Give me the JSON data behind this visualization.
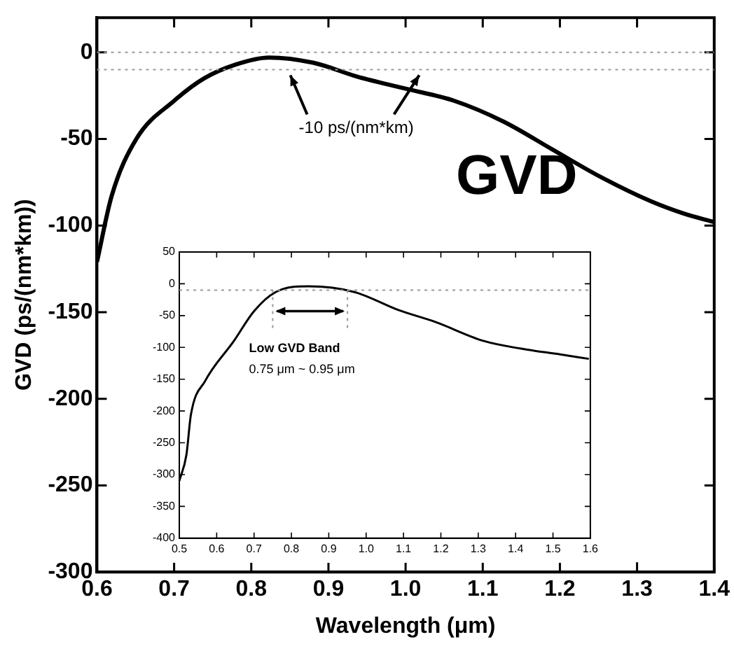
{
  "chart_data": [
    {
      "type": "line",
      "xlabel": "Wavelength (μm)",
      "ylabel": "GVD (ps/(nm*km))",
      "series": [
        {
          "color": "#000000",
          "x": [
            0.6,
            0.619,
            0.651,
            0.7,
            0.739,
            0.78,
            0.823,
            0.88,
            0.937,
            1.0,
            1.063,
            1.127,
            1.19,
            1.253,
            1.318,
            1.36,
            1.4
          ],
          "values": [
            -121,
            -83,
            -50,
            -28,
            -15,
            -7,
            -3,
            -6,
            -14,
            -21,
            -28,
            -40,
            -56,
            -72,
            -86,
            -93,
            -98
          ]
        }
      ],
      "xlim": [
        0.6,
        1.4
      ],
      "xticks": [
        0.6,
        0.7,
        0.8,
        0.9,
        {
          "value": 1,
          "label": "1.0"
        },
        1.1,
        1.2,
        1.3,
        1.4
      ],
      "ylim": [
        -300,
        20
      ],
      "yticks": [
        -300,
        -250,
        -200,
        -150,
        -100,
        -50,
        0
      ],
      "ref_lines": [
        {
          "axis": "y",
          "value": 0,
          "line_style": "dotted",
          "color": "#999999"
        },
        {
          "axis": "y",
          "value": -10,
          "label": "-10 ps/(nm*km)",
          "line_style": "dotted",
          "color": "#999999"
        }
      ],
      "annotations": [
        "GVD"
      ],
      "legend": false,
      "grid": false
    },
    {
      "type": "line",
      "series": [
        {
          "color": "#000000",
          "x": [
            0.5,
            0.519,
            0.531,
            0.569,
            0.646,
            0.7,
            0.758,
            0.846,
            0.969,
            1.085,
            1.185,
            1.315,
            1.415,
            1.519,
            1.596
          ],
          "values": [
            -310,
            -269,
            -206,
            -153,
            -90,
            -43,
            -13,
            -4,
            -13,
            -41,
            -60,
            -90,
            -102,
            -111,
            -118
          ]
        }
      ],
      "xlim": [
        0.5,
        1.6
      ],
      "xticks": [
        0.5,
        0.6,
        0.7,
        0.8,
        0.9,
        {
          "value": 1,
          "label": "1.0"
        },
        1.1,
        1.2,
        1.3,
        1.4,
        1.5,
        1.6
      ],
      "ylim": [
        -400,
        50
      ],
      "yticks": [
        -400,
        -350,
        -300,
        -250,
        -200,
        -150,
        -100,
        -50,
        0,
        50
      ],
      "ref_lines": [
        {
          "axis": "y",
          "value": -10,
          "line_style": "dotted",
          "color": "#999999"
        },
        {
          "axis": "x",
          "value": 0.75,
          "line_style": "dotted",
          "color": "#999999"
        },
        {
          "axis": "x",
          "value": 0.95,
          "line_style": "dotted",
          "color": "#999999"
        }
      ],
      "annotations": [
        "Low GVD Band",
        "0.75 μm ~ 0.95 μm"
      ],
      "legend": false,
      "grid": false
    }
  ]
}
